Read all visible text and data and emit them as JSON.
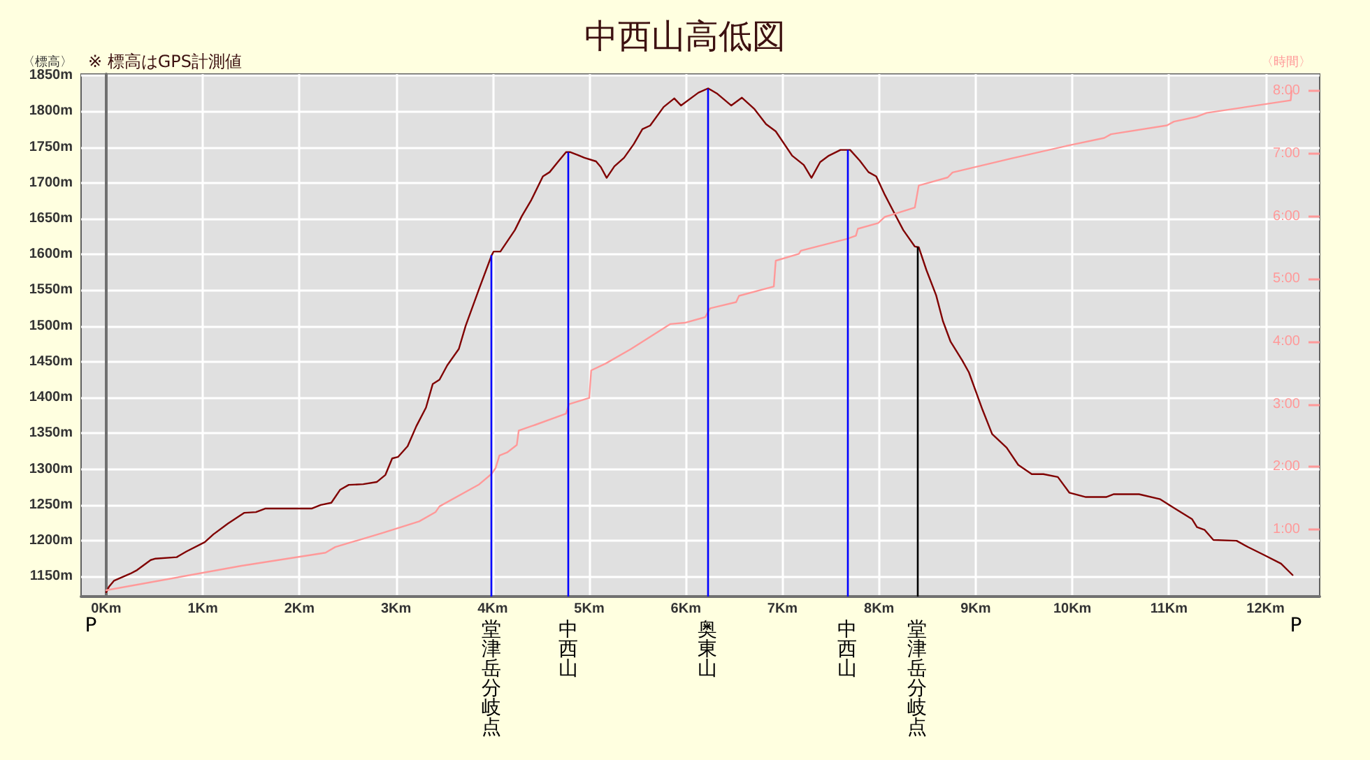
{
  "chart_data": {
    "type": "line",
    "title": "中西山高低図",
    "ylabel": "〈標高〉",
    "y2label": "〈時間〉",
    "annotations": [
      "※ 標高はGPS計測値",
      "P",
      "P"
    ],
    "xlim": [
      -0.26,
      12.56
    ],
    "xticks": [
      {
        "value": 0,
        "label": "0Km"
      },
      {
        "value": 1,
        "label": "1Km"
      },
      {
        "value": 2,
        "label": "2Km"
      },
      {
        "value": 3,
        "label": "3Km"
      },
      {
        "value": 4,
        "label": "4Km"
      },
      {
        "value": 5,
        "label": "5Km"
      },
      {
        "value": 6,
        "label": "6Km"
      },
      {
        "value": 7,
        "label": "7Km"
      },
      {
        "value": 8,
        "label": "8Km"
      },
      {
        "value": 9,
        "label": "9Km"
      },
      {
        "value": 10,
        "label": "10Km"
      },
      {
        "value": 11,
        "label": "11Km"
      },
      {
        "value": 12,
        "label": "12Km"
      }
    ],
    "ylim": [
      1122,
      1852
    ],
    "yticks": [
      {
        "value": 1150,
        "label": "1150m"
      },
      {
        "value": 1200,
        "label": "1200m"
      },
      {
        "value": 1250,
        "label": "1250m"
      },
      {
        "value": 1300,
        "label": "1300m"
      },
      {
        "value": 1350,
        "label": "1350m"
      },
      {
        "value": 1400,
        "label": "1400m"
      },
      {
        "value": 1450,
        "label": "1450m"
      },
      {
        "value": 1500,
        "label": "1500m"
      },
      {
        "value": 1550,
        "label": "1550m"
      },
      {
        "value": 1600,
        "label": "1600m"
      },
      {
        "value": 1650,
        "label": "1650m"
      },
      {
        "value": 1700,
        "label": "1700m"
      },
      {
        "value": 1750,
        "label": "1750m"
      },
      {
        "value": 1800,
        "label": "1800m"
      },
      {
        "value": 1850,
        "label": "1850m"
      }
    ],
    "y2lim": [
      -0.07,
      8.27
    ],
    "y2ticks": [
      {
        "value": 1,
        "label": "1:00"
      },
      {
        "value": 2,
        "label": "2:00"
      },
      {
        "value": 3,
        "label": "3:00"
      },
      {
        "value": 4,
        "label": "4:00"
      },
      {
        "value": 5,
        "label": "5:00"
      },
      {
        "value": 6,
        "label": "6:00"
      },
      {
        "value": 7,
        "label": "7:00"
      },
      {
        "value": 8,
        "label": "8:00"
      }
    ],
    "grid": true,
    "marker": "none",
    "series": [
      {
        "color": "#800000",
        "x": [
          0,
          0.03,
          0.08,
          0.25,
          0.32,
          0.46,
          0.51,
          0.73,
          0.83,
          1.02,
          1.11,
          1.26,
          1.43,
          1.55,
          1.65,
          2.13,
          2.22,
          2.33,
          2.42,
          2.51,
          2.66,
          2.8,
          2.89,
          2.96,
          3.02,
          3.12,
          3.21,
          3.31,
          3.38,
          3.45,
          3.53,
          3.65,
          3.72,
          3.86,
          3.99,
          4.01,
          4.08,
          4.18,
          4.23,
          4.3,
          4.4,
          4.52,
          4.59,
          4.68,
          4.76,
          4.8,
          4.88,
          4.95,
          5.07,
          5.12,
          5.18,
          5.26,
          5.36,
          5.46,
          5.55,
          5.63,
          5.77,
          5.88,
          5.95,
          6.13,
          6.23,
          6.32,
          6.47,
          6.58,
          6.71,
          6.83,
          6.93,
          7.1,
          7.22,
          7.3,
          7.39,
          7.48,
          7.6,
          7.7,
          7.8,
          7.89,
          7.97,
          8.06,
          8.16,
          8.25,
          8.37,
          8.41,
          8.49,
          8.59,
          8.66,
          8.74,
          8.86,
          8.93,
          9.07,
          9.17,
          9.32,
          9.44,
          9.58,
          9.7,
          9.85,
          9.97,
          10.14,
          10.35,
          10.43,
          10.69,
          10.91,
          11.05,
          11.24,
          11.29,
          11.37,
          11.46,
          11.7,
          11.82,
          11.97,
          12.16,
          12.28
        ],
        "values": [
          1128,
          1136,
          1144,
          1154,
          1159,
          1173,
          1175,
          1177,
          1185,
          1198,
          1209,
          1224,
          1239,
          1240,
          1245,
          1245,
          1250,
          1253,
          1271,
          1278,
          1279,
          1282,
          1292,
          1315,
          1317,
          1332,
          1360,
          1386,
          1419,
          1425,
          1445,
          1468,
          1500,
          1552,
          1599,
          1604,
          1604,
          1624,
          1634,
          1653,
          1676,
          1709,
          1715,
          1730,
          1743,
          1743,
          1739,
          1735,
          1730,
          1722,
          1707,
          1723,
          1735,
          1754,
          1775,
          1780,
          1806,
          1818,
          1808,
          1826,
          1832,
          1825,
          1808,
          1819,
          1803,
          1782,
          1772,
          1738,
          1725,
          1707,
          1729,
          1738,
          1746,
          1746,
          1731,
          1715,
          1709,
          1683,
          1657,
          1634,
          1611,
          1610,
          1578,
          1543,
          1507,
          1478,
          1452,
          1435,
          1383,
          1349,
          1330,
          1306,
          1293,
          1293,
          1289,
          1267,
          1261,
          1261,
          1265,
          1265,
          1258,
          1246,
          1230,
          1219,
          1215,
          1201,
          1200,
          1191,
          1181,
          1168,
          1152
        ]
      },
      {
        "color": "#ff9999",
        "axis": "y2",
        "x": [
          0,
          1.4,
          2.27,
          2.37,
          2.85,
          3.24,
          3.41,
          3.45,
          3.86,
          3.99,
          4.03,
          4.07,
          4.15,
          4.25,
          4.27,
          4.44,
          4.76,
          4.79,
          5.0,
          5.02,
          5.17,
          5.43,
          5.84,
          5.99,
          6.2,
          6.25,
          6.52,
          6.55,
          6.91,
          6.93,
          7.17,
          7.19,
          7.67,
          7.76,
          7.78,
          7.99,
          8.06,
          8.37,
          8.41,
          8.71,
          8.76,
          9.36,
          9.99,
          10.33,
          10.4,
          10.98,
          11.05,
          11.29,
          11.39,
          12.26,
          12.27
        ],
        "values": [
          0.03,
          0.42,
          0.63,
          0.72,
          0.94,
          1.13,
          1.28,
          1.37,
          1.72,
          1.89,
          1.98,
          2.18,
          2.23,
          2.35,
          2.58,
          2.67,
          2.85,
          3.0,
          3.1,
          3.54,
          3.65,
          3.88,
          4.28,
          4.3,
          4.39,
          4.53,
          4.63,
          4.73,
          4.88,
          5.29,
          5.4,
          5.45,
          5.64,
          5.69,
          5.8,
          5.89,
          5.99,
          6.14,
          6.49,
          6.62,
          6.7,
          6.92,
          7.14,
          7.25,
          7.31,
          7.45,
          7.51,
          7.59,
          7.65,
          7.85,
          8.0
        ]
      }
    ],
    "ref_lines": [
      {
        "axis": "x",
        "value": 3.99,
        "label": "堂津岳分岐点",
        "color": "#0000ff"
      },
      {
        "axis": "x",
        "value": 4.78,
        "label": "中西山",
        "color": "#0000ff"
      },
      {
        "axis": "x",
        "value": 6.22,
        "label": "奥東山",
        "color": "#0000ff"
      },
      {
        "axis": "x",
        "value": 7.67,
        "label": "中西山",
        "color": "#0000ff"
      },
      {
        "axis": "x",
        "value": 8.39,
        "label": "堂津岳分岐点",
        "color": "#000000"
      }
    ]
  }
}
